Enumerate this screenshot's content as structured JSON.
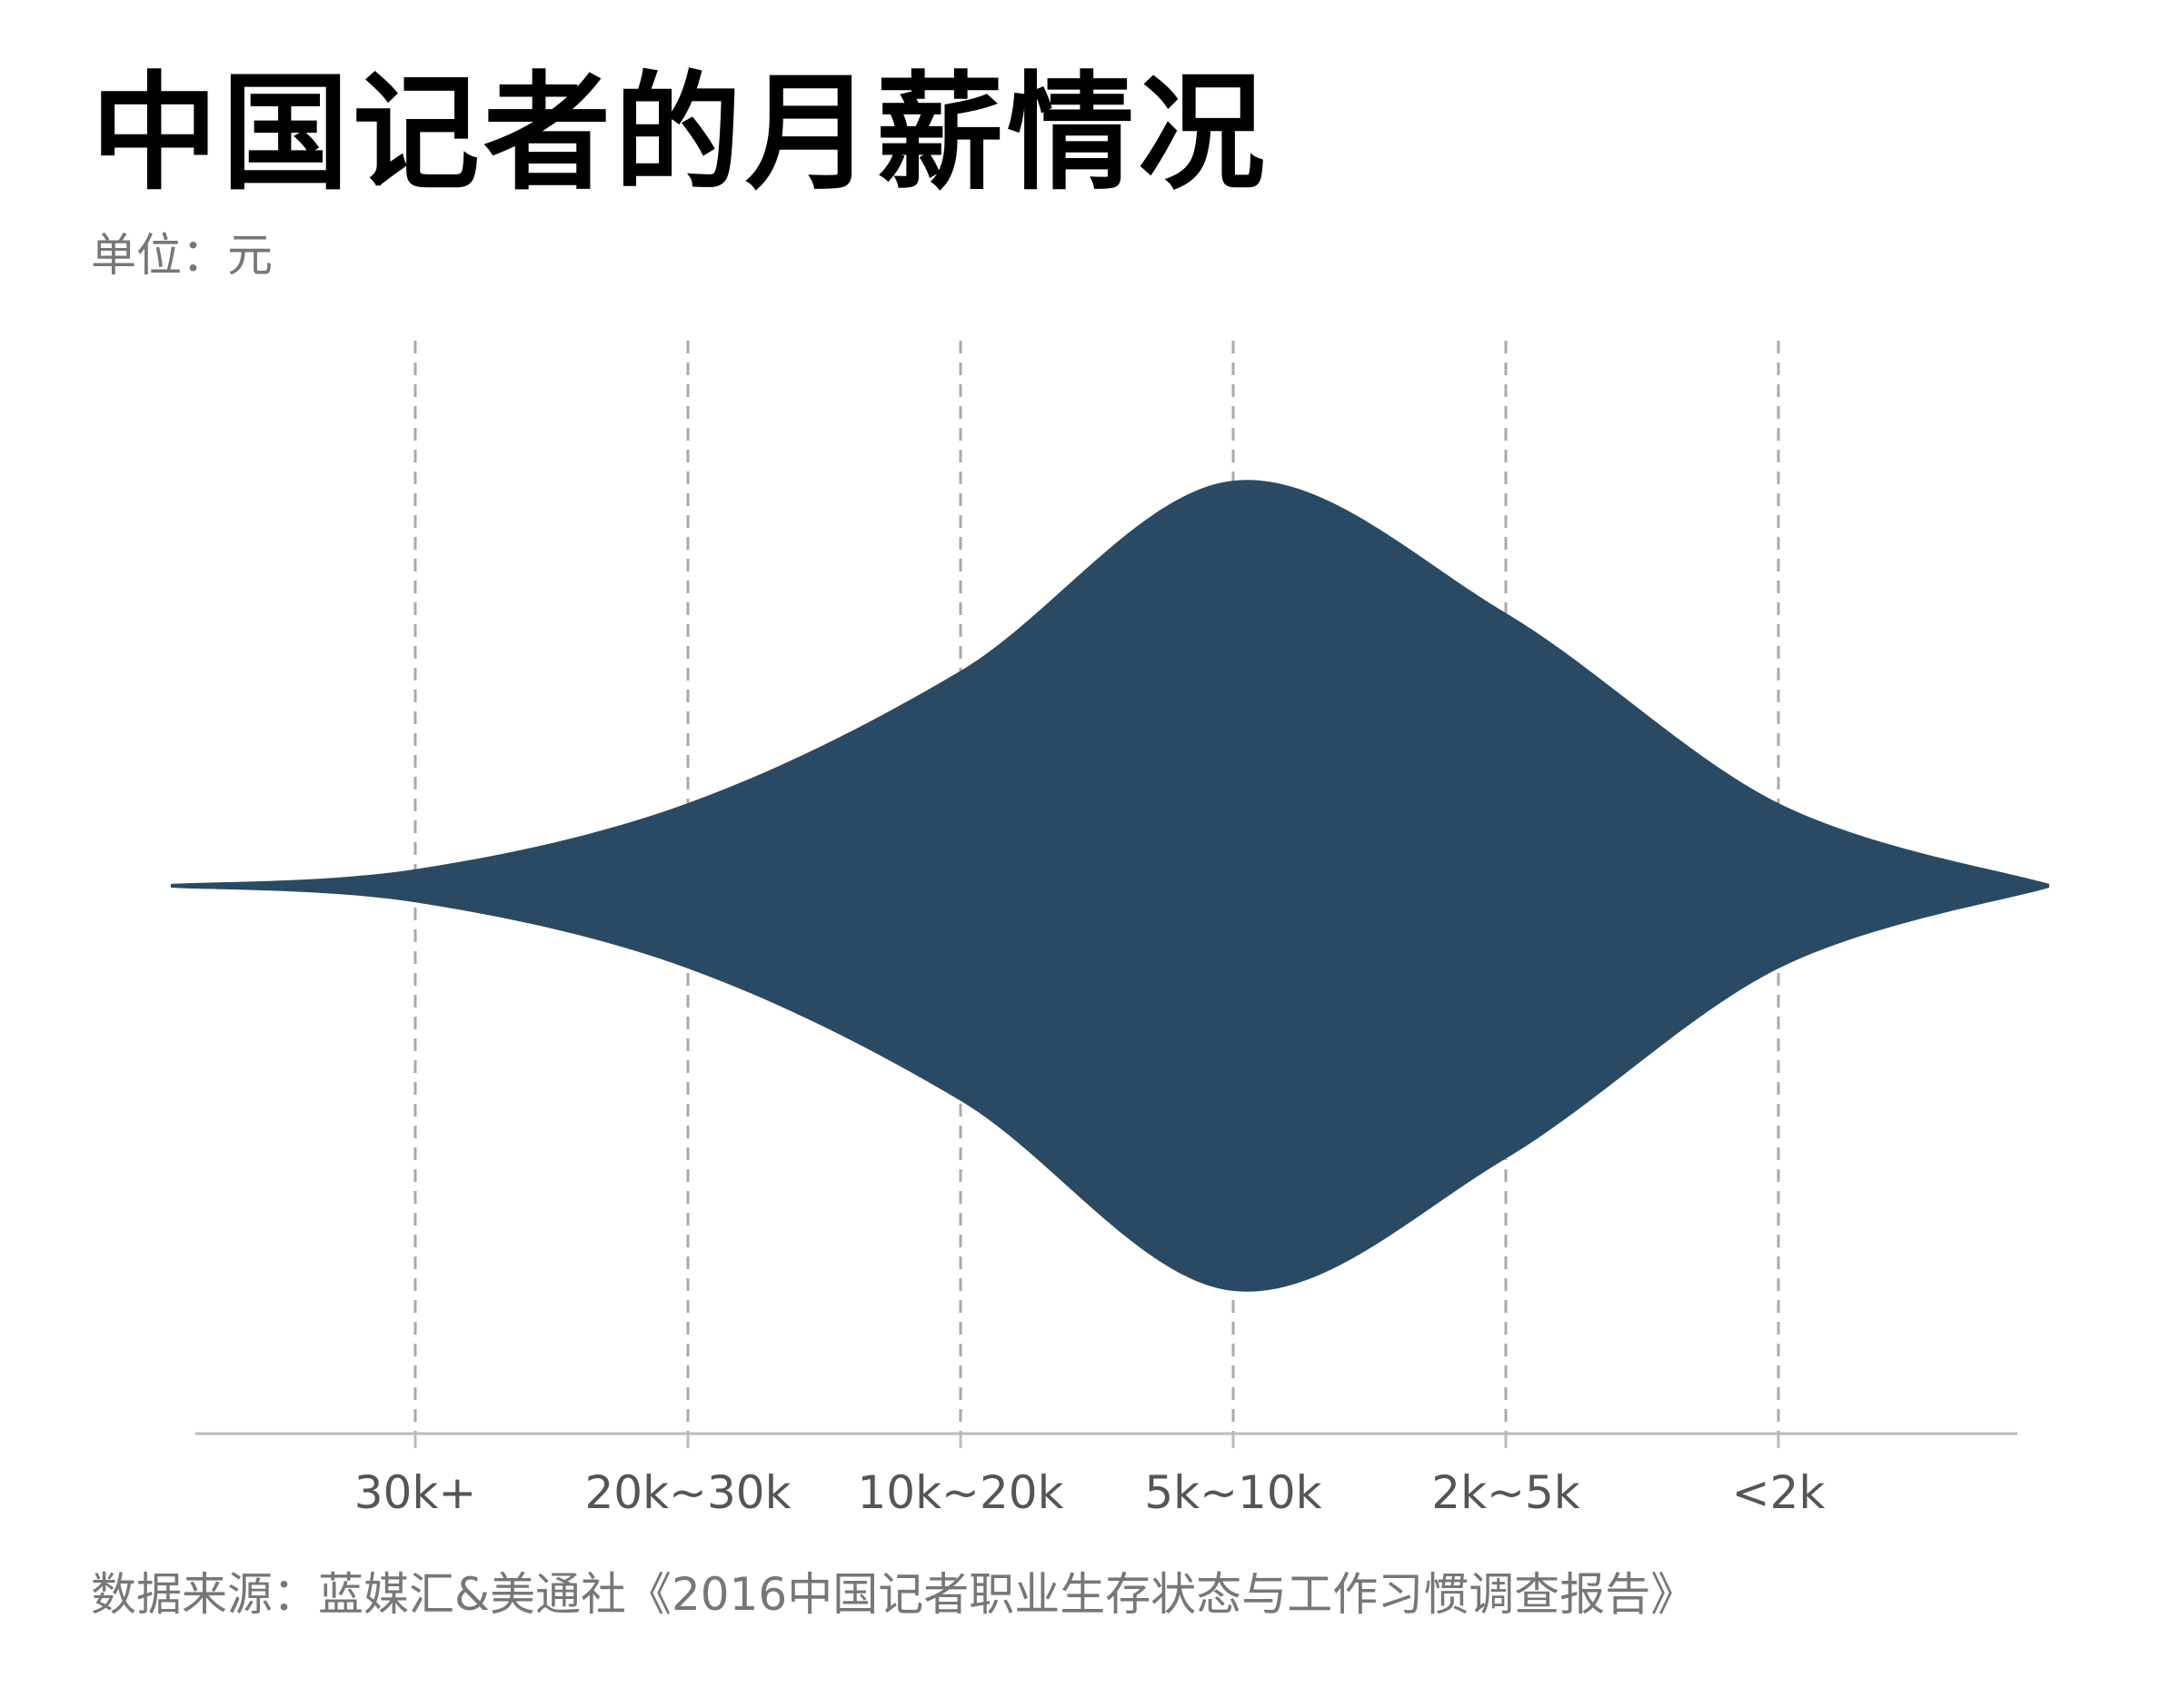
{
  "title": "中国记者的月薪情况",
  "subtitle": "单位：元",
  "source": "数据来源：蓝媒汇&美通社《2016中国记者职业生存状态与工作习惯调查报告》",
  "colors": {
    "fill": "#2a4a64",
    "gridline": "#aaaaaa",
    "axis": "#bbbbbb",
    "tick_text": "#555555"
  },
  "chart_data": {
    "type": "area",
    "title": "中国记者的月薪情况",
    "subtitle": "单位：元",
    "categories": [
      "30k+",
      "20k~30k",
      "10k~20k",
      "5k~10k",
      "2k~5k",
      "<2k"
    ],
    "values": [
      0.04,
      0.2,
      0.52,
      0.98,
      0.66,
      0.2
    ],
    "ylim": [
      0,
      1
    ],
    "grid": true,
    "shape": "violin-symmetric"
  }
}
